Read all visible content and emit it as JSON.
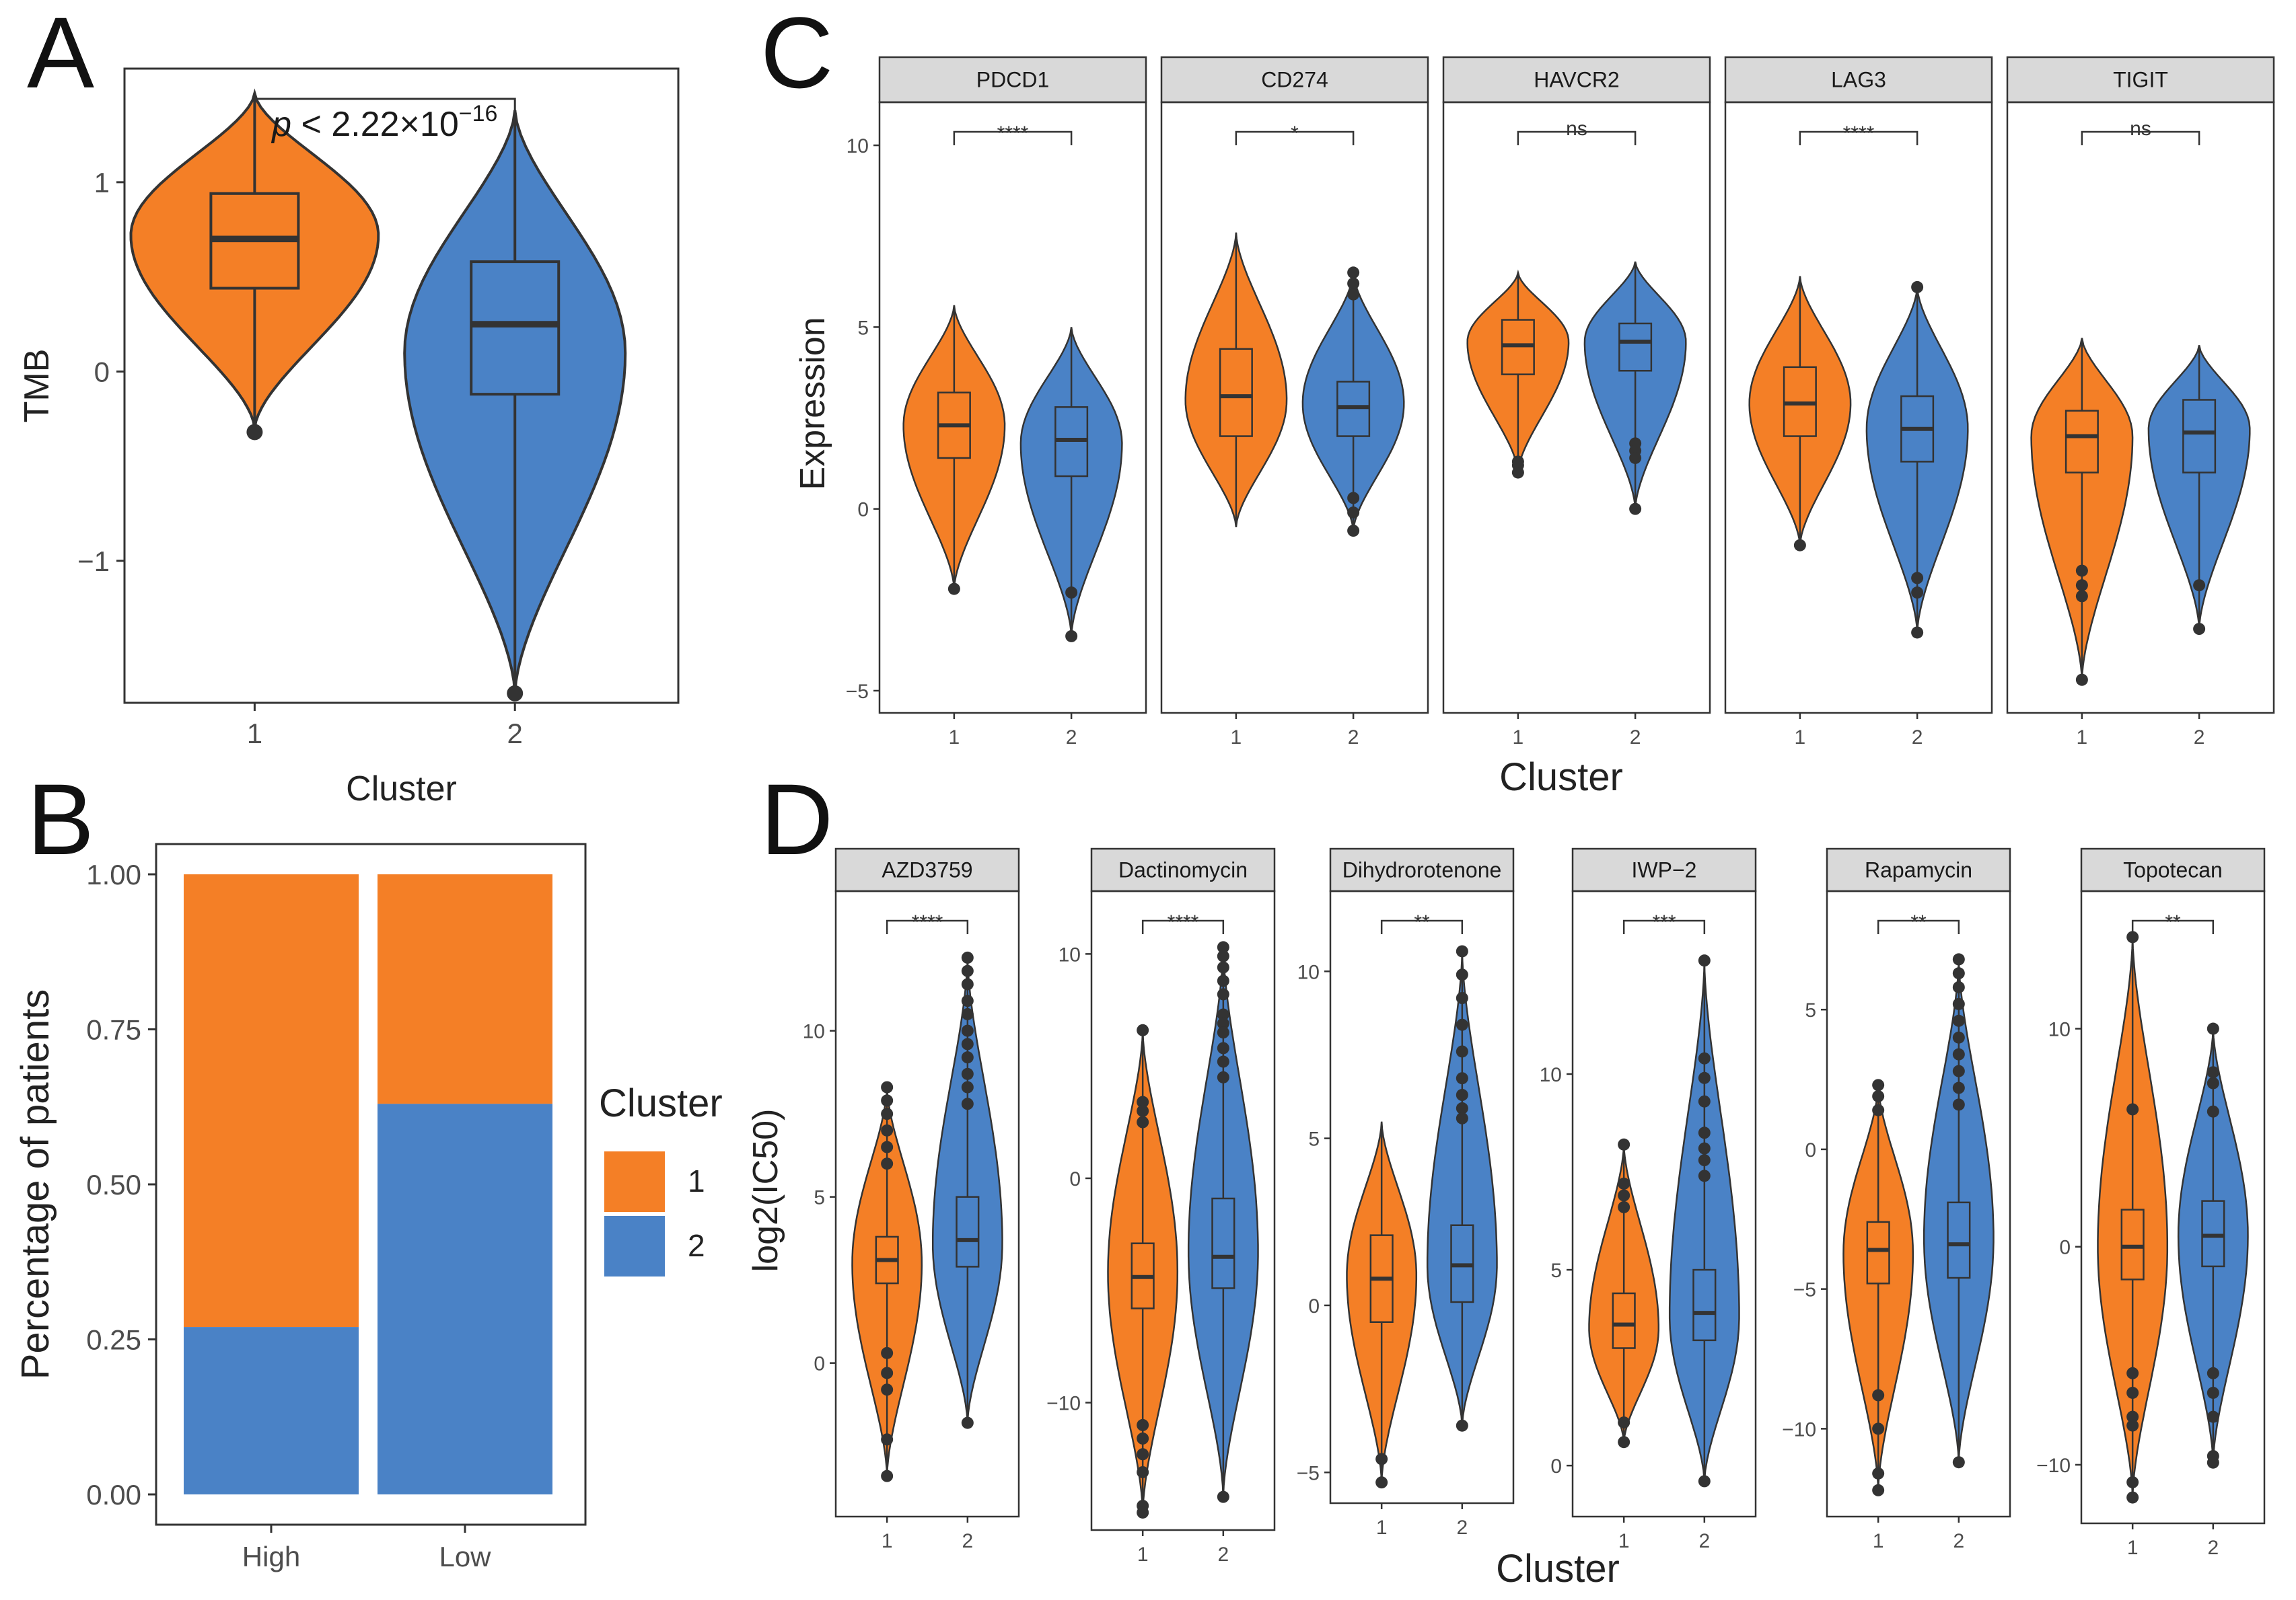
{
  "figure": {
    "panels": [
      "A",
      "B",
      "C",
      "D"
    ]
  },
  "colors": {
    "cluster1": "#F47F26",
    "cluster2": "#4A82C6",
    "outline": "#333333",
    "frame": "#333333",
    "strip": "#D9D9D9",
    "significance": "#C0392B",
    "ns": "#222222"
  },
  "legend": {
    "title": "Cluster",
    "items": [
      {
        "label": "1",
        "color": "#F47F26"
      },
      {
        "label": "2",
        "color": "#4A82C6"
      }
    ]
  },
  "chart_data": [
    {
      "id": "A",
      "type": "violin",
      "ylabel": "TMB",
      "xlabel": "Cluster",
      "categories": [
        "1",
        "2"
      ],
      "ylim": [
        -1.75,
        1.6
      ],
      "yticks": [
        -1,
        0,
        1
      ],
      "p_value": {
        "prefix": "p",
        "text": " < 2.22×10",
        "exponent": "−16"
      },
      "groups": [
        {
          "cluster": "1",
          "median": 0.7,
          "q1": 0.44,
          "q3": 0.94,
          "lower": -0.3,
          "upper": 1.47,
          "outliers": [
            -0.32
          ],
          "violin_mid": 0.72,
          "violin_max_width": 0.92
        },
        {
          "cluster": "2",
          "median": 0.25,
          "q1": -0.12,
          "q3": 0.58,
          "lower": -1.7,
          "upper": 1.38,
          "outliers": [
            -1.7
          ],
          "violin_mid": 0.1,
          "violin_max_width": 0.82
        }
      ]
    },
    {
      "id": "B",
      "type": "stacked-bar",
      "ylabel": "Percentage of patients",
      "xlabel": "",
      "categories": [
        "High",
        "Low"
      ],
      "ylim": [
        0,
        1
      ],
      "yticks": [
        "0.00",
        "0.25",
        "0.50",
        "0.75",
        "1.00"
      ],
      "series": [
        {
          "name": "2",
          "values": [
            0.27,
            0.63
          ]
        },
        {
          "name": "1",
          "values": [
            0.73,
            0.37
          ]
        }
      ]
    },
    {
      "id": "C",
      "type": "violin-facets",
      "ylabel": "Expression",
      "xlabel": "Cluster",
      "ylim": [
        -5.5,
        11
      ],
      "yticks": [
        -5,
        0,
        5,
        10
      ],
      "facets": [
        {
          "label": "PDCD1",
          "sig": "****",
          "groups": [
            {
              "cluster": "1",
              "median": 2.3,
              "q1": 1.4,
              "q3": 3.2,
              "lower": -2.2,
              "upper": 5.6,
              "outliers": [
                -2.2
              ],
              "violin_mid": 2.3,
              "violin_max_width": 0.95
            },
            {
              "cluster": "2",
              "median": 1.9,
              "q1": 0.9,
              "q3": 2.8,
              "lower": -3.5,
              "upper": 5.0,
              "outliers": [
                -2.3,
                -3.5
              ],
              "violin_mid": 1.8,
              "violin_max_width": 0.95
            }
          ]
        },
        {
          "label": "CD274",
          "sig": "*",
          "groups": [
            {
              "cluster": "1",
              "median": 3.1,
              "q1": 2.0,
              "q3": 4.4,
              "lower": -0.5,
              "upper": 7.6,
              "outliers": [],
              "violin_mid": 3.0,
              "violin_max_width": 0.95
            },
            {
              "cluster": "2",
              "median": 2.8,
              "q1": 2.0,
              "q3": 3.5,
              "lower": -0.6,
              "upper": 6.5,
              "outliers": [
                6.5,
                6.2,
                5.9,
                0.3,
                -0.1,
                -0.6
              ],
              "violin_mid": 2.9,
              "violin_max_width": 0.95
            }
          ]
        },
        {
          "label": "HAVCR2",
          "sig": "ns",
          "groups": [
            {
              "cluster": "1",
              "median": 4.5,
              "q1": 3.7,
              "q3": 5.2,
              "lower": 1.0,
              "upper": 6.5,
              "outliers": [
                1.0,
                1.2,
                1.3
              ],
              "violin_mid": 4.6,
              "violin_max_width": 0.95
            },
            {
              "cluster": "2",
              "median": 4.6,
              "q1": 3.8,
              "q3": 5.1,
              "lower": 0.0,
              "upper": 6.8,
              "outliers": [
                1.8,
                1.6,
                1.4,
                0.0
              ],
              "violin_mid": 4.6,
              "violin_max_width": 0.95
            }
          ]
        },
        {
          "label": "LAG3",
          "sig": "****",
          "groups": [
            {
              "cluster": "1",
              "median": 2.9,
              "q1": 2.0,
              "q3": 3.9,
              "lower": -1.0,
              "upper": 6.4,
              "outliers": [
                -1.0
              ],
              "violin_mid": 2.9,
              "violin_max_width": 0.95
            },
            {
              "cluster": "2",
              "median": 2.2,
              "q1": 1.3,
              "q3": 3.1,
              "lower": -3.4,
              "upper": 6.1,
              "outliers": [
                6.1,
                -1.9,
                -2.3,
                -3.4
              ],
              "violin_mid": 2.2,
              "violin_max_width": 0.95
            }
          ]
        },
        {
          "label": "TIGIT",
          "sig": "ns",
          "groups": [
            {
              "cluster": "1",
              "median": 2.0,
              "q1": 1.0,
              "q3": 2.7,
              "lower": -4.7,
              "upper": 4.7,
              "outliers": [
                -1.7,
                -2.1,
                -2.4,
                -4.7
              ],
              "violin_mid": 2.0,
              "violin_max_width": 0.95
            },
            {
              "cluster": "2",
              "median": 2.1,
              "q1": 1.0,
              "q3": 3.0,
              "lower": -3.3,
              "upper": 4.5,
              "outliers": [
                -2.1,
                -3.3
              ],
              "violin_mid": 2.2,
              "violin_max_width": 0.95
            }
          ]
        }
      ]
    },
    {
      "id": "D",
      "type": "violin-facets",
      "ylabel": "log2(IC50)",
      "xlabel": "Cluster",
      "facets": [
        {
          "label": "AZD3759",
          "sig": "****",
          "ylim": [
            -4.5,
            14
          ],
          "yticks": [
            0,
            5,
            10
          ],
          "groups": [
            {
              "cluster": "1",
              "median": 3.1,
              "q1": 2.4,
              "q3": 3.8,
              "lower": -3.4,
              "upper": 8.3,
              "outliers": [
                8.3,
                7.9,
                7.5,
                7.0,
                6.5,
                6.0,
                0.3,
                -0.3,
                -0.8,
                -2.3,
                -3.4
              ],
              "violin_mid": 3.0,
              "violin_max_width": 0.95
            },
            {
              "cluster": "2",
              "median": 3.7,
              "q1": 2.9,
              "q3": 5.0,
              "lower": -1.8,
              "upper": 12.2,
              "outliers": [
                12.2,
                11.8,
                11.4,
                10.9,
                10.5,
                10.0,
                9.6,
                9.2,
                8.7,
                8.3,
                7.8,
                -1.8
              ],
              "violin_mid": 3.6,
              "violin_max_width": 0.95
            }
          ]
        },
        {
          "label": "Dactinomycin",
          "sig": "****",
          "ylim": [
            -15.5,
            12.5
          ],
          "yticks": [
            -10,
            0,
            10
          ],
          "groups": [
            {
              "cluster": "1",
              "median": -4.4,
              "q1": -5.8,
              "q3": -2.9,
              "lower": -14.9,
              "upper": 6.6,
              "outliers": [
                6.6,
                3.4,
                3.0,
                2.5,
                -11.0,
                -11.6,
                -12.3,
                -13.1,
                -14.6,
                -14.9
              ],
              "violin_mid": -4.2,
              "violin_max_width": 0.95
            },
            {
              "cluster": "2",
              "median": -3.5,
              "q1": -4.9,
              "q3": -0.9,
              "lower": -14.2,
              "upper": 10.3,
              "outliers": [
                10.3,
                9.9,
                9.4,
                8.8,
                8.2,
                7.3,
                6.9,
                6.5,
                5.8,
                5.2,
                4.5,
                -14.2
              ],
              "violin_mid": -3.3,
              "violin_max_width": 0.95
            }
          ]
        },
        {
          "label": "Dihydrorotenone",
          "sig": "**",
          "ylim": [
            -5.8,
            12.2
          ],
          "yticks": [
            -5,
            0,
            5,
            10
          ],
          "groups": [
            {
              "cluster": "1",
              "median": 0.8,
              "q1": -0.5,
              "q3": 2.1,
              "lower": -5.3,
              "upper": 5.5,
              "outliers": [
                -4.6,
                -5.3
              ],
              "violin_mid": 0.9,
              "violin_max_width": 0.95
            },
            {
              "cluster": "2",
              "median": 1.2,
              "q1": 0.1,
              "q3": 2.4,
              "lower": -3.6,
              "upper": 10.6,
              "outliers": [
                10.6,
                9.9,
                9.2,
                8.4,
                7.6,
                6.8,
                6.3,
                5.9,
                5.6,
                -3.6
              ],
              "violin_mid": 1.2,
              "violin_max_width": 0.95
            }
          ]
        },
        {
          "label": "IWP−2",
          "sig": "***",
          "ylim": [
            -1.2,
            14.5
          ],
          "yticks": [
            0,
            5,
            10
          ],
          "groups": [
            {
              "cluster": "1",
              "median": 3.6,
              "q1": 3.0,
              "q3": 4.4,
              "lower": 0.6,
              "upper": 8.2,
              "outliers": [
                8.2,
                7.2,
                6.9,
                6.6,
                1.1,
                0.6
              ],
              "violin_mid": 3.5,
              "violin_max_width": 0.95
            },
            {
              "cluster": "2",
              "median": 3.9,
              "q1": 3.2,
              "q3": 5.0,
              "lower": -0.4,
              "upper": 12.9,
              "outliers": [
                12.9,
                10.4,
                9.9,
                9.3,
                8.5,
                8.1,
                7.8,
                7.4,
                -0.4
              ],
              "violin_mid": 3.8,
              "violin_max_width": 0.95
            }
          ]
        },
        {
          "label": "Rapamycin",
          "sig": "**",
          "ylim": [
            -13,
            9
          ],
          "yticks": [
            -10,
            -5,
            0,
            5
          ],
          "groups": [
            {
              "cluster": "1",
              "median": -3.6,
              "q1": -4.8,
              "q3": -2.6,
              "lower": -12.2,
              "upper": 2.3,
              "outliers": [
                2.3,
                1.9,
                1.4,
                -8.8,
                -10.0,
                -11.6,
                -12.2
              ],
              "violin_mid": -3.7,
              "violin_max_width": 0.95
            },
            {
              "cluster": "2",
              "median": -3.4,
              "q1": -4.6,
              "q3": -1.9,
              "lower": -11.2,
              "upper": 6.8,
              "outliers": [
                6.8,
                6.3,
                5.8,
                5.2,
                4.6,
                4.0,
                3.4,
                2.8,
                2.2,
                1.6,
                -11.2
              ],
              "violin_mid": -3.2,
              "violin_max_width": 0.95
            }
          ]
        },
        {
          "label": "Topotecan",
          "sig": "**",
          "ylim": [
            -12.5,
            16
          ],
          "yticks": [
            -10,
            0,
            10
          ],
          "groups": [
            {
              "cluster": "1",
              "median": 0.0,
              "q1": -1.5,
              "q3": 1.7,
              "lower": -11.5,
              "upper": 14.2,
              "outliers": [
                14.2,
                6.3,
                -5.8,
                -6.7,
                -7.8,
                -8.2,
                -10.8,
                -11.5
              ],
              "violin_mid": 0.0,
              "violin_max_width": 0.95
            },
            {
              "cluster": "2",
              "median": 0.5,
              "q1": -0.9,
              "q3": 2.1,
              "lower": -9.9,
              "upper": 10.0,
              "outliers": [
                10.0,
                8.0,
                7.5,
                6.2,
                -5.8,
                -6.7,
                -7.8,
                -9.6,
                -9.9
              ],
              "violin_mid": 0.5,
              "violin_max_width": 0.95
            }
          ]
        }
      ]
    }
  ]
}
